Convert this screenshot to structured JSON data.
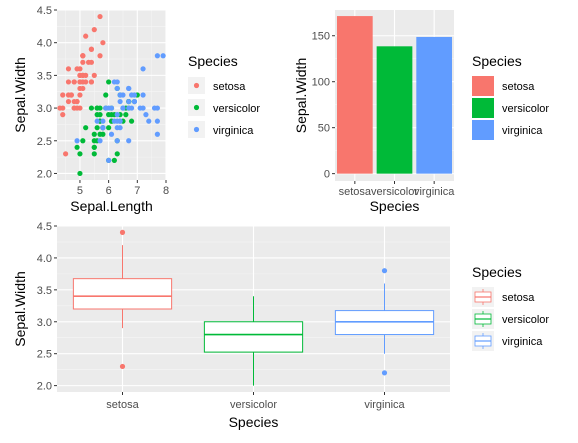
{
  "colors": {
    "setosa": "#F8766D",
    "versicolor": "#00BA38",
    "virginica": "#619CFF",
    "panel": "#EBEBEB",
    "grid_major": "#FFFFFF",
    "grid_minor": "#F5F5F5",
    "legend_key_bg": "#F2F2F2"
  },
  "chart_data": [
    {
      "type": "scatter",
      "xlabel": "Sepal.Length",
      "ylabel": "Sepal.Width",
      "xlim": [
        4.2,
        8.0
      ],
      "ylim": [
        1.9,
        4.5
      ],
      "xticks": [
        5,
        6,
        7,
        8
      ],
      "yticks": [
        2.0,
        2.5,
        3.0,
        3.5,
        4.0,
        4.5
      ],
      "xtick_labels": [
        "5",
        "6",
        "7",
        "8"
      ],
      "ytick_labels": [
        "2.0",
        "2.5",
        "3.0",
        "3.5",
        "4.0",
        "4.5"
      ],
      "grid": true,
      "legend": {
        "title": "Species",
        "position": "right",
        "entries": [
          "setosa",
          "versicolor",
          "virginica"
        ]
      },
      "series": [
        {
          "name": "setosa",
          "points": [
            [
              5.1,
              3.5
            ],
            [
              4.9,
              3.0
            ],
            [
              4.7,
              3.2
            ],
            [
              4.6,
              3.1
            ],
            [
              5.0,
              3.6
            ],
            [
              5.4,
              3.9
            ],
            [
              4.6,
              3.4
            ],
            [
              5.0,
              3.4
            ],
            [
              4.4,
              2.9
            ],
            [
              4.9,
              3.1
            ],
            [
              5.4,
              3.7
            ],
            [
              4.8,
              3.4
            ],
            [
              4.8,
              3.0
            ],
            [
              4.3,
              3.0
            ],
            [
              5.8,
              4.0
            ],
            [
              5.7,
              4.4
            ],
            [
              5.4,
              3.9
            ],
            [
              5.1,
              3.5
            ],
            [
              5.7,
              3.8
            ],
            [
              5.1,
              3.8
            ],
            [
              5.4,
              3.4
            ],
            [
              5.1,
              3.7
            ],
            [
              4.6,
              3.6
            ],
            [
              5.1,
              3.3
            ],
            [
              4.8,
              3.4
            ],
            [
              5.0,
              3.0
            ],
            [
              5.0,
              3.4
            ],
            [
              5.2,
              3.5
            ],
            [
              5.2,
              3.4
            ],
            [
              4.7,
              3.2
            ],
            [
              4.8,
              3.1
            ],
            [
              5.4,
              3.4
            ],
            [
              5.2,
              4.1
            ],
            [
              5.5,
              4.2
            ],
            [
              4.9,
              3.1
            ],
            [
              5.0,
              3.2
            ],
            [
              5.5,
              3.5
            ],
            [
              4.9,
              3.6
            ],
            [
              4.4,
              3.0
            ],
            [
              5.1,
              3.4
            ],
            [
              5.0,
              3.5
            ],
            [
              4.5,
              2.3
            ],
            [
              4.4,
              3.2
            ],
            [
              5.0,
              3.5
            ],
            [
              5.1,
              3.8
            ],
            [
              4.8,
              3.0
            ],
            [
              5.1,
              3.8
            ],
            [
              4.6,
              3.2
            ],
            [
              5.3,
              3.7
            ],
            [
              5.0,
              3.3
            ]
          ]
        },
        {
          "name": "versicolor",
          "points": [
            [
              7.0,
              3.2
            ],
            [
              6.4,
              3.2
            ],
            [
              6.9,
              3.1
            ],
            [
              5.5,
              2.3
            ],
            [
              6.5,
              2.8
            ],
            [
              5.7,
              2.8
            ],
            [
              6.3,
              3.3
            ],
            [
              4.9,
              2.4
            ],
            [
              6.6,
              2.9
            ],
            [
              5.2,
              2.7
            ],
            [
              5.0,
              2.0
            ],
            [
              5.9,
              3.0
            ],
            [
              6.0,
              2.2
            ],
            [
              6.1,
              2.9
            ],
            [
              5.6,
              2.9
            ],
            [
              6.7,
              3.1
            ],
            [
              5.6,
              3.0
            ],
            [
              5.8,
              2.7
            ],
            [
              6.2,
              2.2
            ],
            [
              5.6,
              2.5
            ],
            [
              5.9,
              3.2
            ],
            [
              6.1,
              2.8
            ],
            [
              6.3,
              2.5
            ],
            [
              6.1,
              2.8
            ],
            [
              6.4,
              2.9
            ],
            [
              6.6,
              3.0
            ],
            [
              6.8,
              2.8
            ],
            [
              6.7,
              3.0
            ],
            [
              6.0,
              2.9
            ],
            [
              5.7,
              2.6
            ],
            [
              5.5,
              2.4
            ],
            [
              5.5,
              2.4
            ],
            [
              5.8,
              2.7
            ],
            [
              6.0,
              2.7
            ],
            [
              5.4,
              3.0
            ],
            [
              6.0,
              3.4
            ],
            [
              6.7,
              3.1
            ],
            [
              6.3,
              2.3
            ],
            [
              5.6,
              3.0
            ],
            [
              5.5,
              2.5
            ],
            [
              5.5,
              2.6
            ],
            [
              6.1,
              3.0
            ],
            [
              5.8,
              2.6
            ],
            [
              5.0,
              2.3
            ],
            [
              5.6,
              2.7
            ],
            [
              5.7,
              3.0
            ],
            [
              5.7,
              2.9
            ],
            [
              6.2,
              2.9
            ],
            [
              5.1,
              2.5
            ],
            [
              5.7,
              2.8
            ]
          ]
        },
        {
          "name": "virginica",
          "points": [
            [
              6.3,
              3.3
            ],
            [
              5.8,
              2.7
            ],
            [
              7.1,
              3.0
            ],
            [
              6.3,
              2.9
            ],
            [
              6.5,
              3.0
            ],
            [
              7.6,
              3.0
            ],
            [
              4.9,
              2.5
            ],
            [
              7.3,
              2.9
            ],
            [
              6.7,
              2.5
            ],
            [
              7.2,
              3.6
            ],
            [
              6.5,
              3.2
            ],
            [
              6.4,
              2.7
            ],
            [
              6.8,
              3.0
            ],
            [
              5.7,
              2.5
            ],
            [
              5.8,
              2.8
            ],
            [
              6.4,
              3.2
            ],
            [
              6.5,
              3.0
            ],
            [
              7.7,
              3.8
            ],
            [
              7.7,
              2.6
            ],
            [
              6.0,
              2.2
            ],
            [
              6.9,
              3.2
            ],
            [
              5.6,
              2.8
            ],
            [
              7.7,
              2.8
            ],
            [
              6.3,
              2.7
            ],
            [
              6.7,
              3.3
            ],
            [
              7.2,
              3.2
            ],
            [
              6.2,
              2.8
            ],
            [
              6.1,
              3.0
            ],
            [
              6.4,
              2.8
            ],
            [
              7.2,
              3.0
            ],
            [
              7.4,
              2.8
            ],
            [
              7.9,
              3.8
            ],
            [
              6.4,
              2.8
            ],
            [
              6.3,
              2.8
            ],
            [
              6.1,
              2.6
            ],
            [
              7.7,
              3.0
            ],
            [
              6.3,
              3.4
            ],
            [
              6.4,
              3.1
            ],
            [
              6.0,
              3.0
            ],
            [
              6.9,
              3.1
            ],
            [
              6.7,
              3.1
            ],
            [
              6.9,
              3.1
            ],
            [
              5.8,
              2.7
            ],
            [
              6.8,
              3.2
            ],
            [
              6.7,
              3.3
            ],
            [
              6.7,
              3.0
            ],
            [
              6.3,
              2.5
            ],
            [
              6.5,
              3.0
            ],
            [
              6.2,
              3.4
            ],
            [
              5.9,
              3.0
            ]
          ]
        }
      ]
    },
    {
      "type": "bar",
      "xlabel": "Species",
      "ylabel": "Sepal.Width",
      "categories": [
        "setosa",
        "versicolor",
        "virginica"
      ],
      "values": [
        171.4,
        138.5,
        148.7
      ],
      "ylim": [
        -8,
        178
      ],
      "yticks": [
        0,
        50,
        100,
        150
      ],
      "ytick_labels": [
        "0",
        "50",
        "100",
        "150"
      ],
      "grid": true,
      "legend": {
        "title": "Species",
        "position": "right",
        "entries": [
          "setosa",
          "versicolor",
          "virginica"
        ]
      }
    },
    {
      "type": "box",
      "xlabel": "Species",
      "ylabel": "Sepal.Width",
      "categories": [
        "setosa",
        "versicolor",
        "virginica"
      ],
      "ylim": [
        1.9,
        4.5
      ],
      "yticks": [
        2.0,
        2.5,
        3.0,
        3.5,
        4.0,
        4.5
      ],
      "ytick_labels": [
        "2.0",
        "2.5",
        "3.0",
        "3.5",
        "4.0",
        "4.5"
      ],
      "grid": true,
      "boxes": [
        {
          "name": "setosa",
          "whisker_low": 2.9,
          "q1": 3.2,
          "median": 3.4,
          "q3": 3.675,
          "whisker_high": 4.2,
          "outliers": [
            4.4,
            2.3
          ]
        },
        {
          "name": "versicolor",
          "whisker_low": 2.0,
          "q1": 2.525,
          "median": 2.8,
          "q3": 3.0,
          "whisker_high": 3.4,
          "outliers": []
        },
        {
          "name": "virginica",
          "whisker_low": 2.5,
          "q1": 2.8,
          "median": 3.0,
          "q3": 3.175,
          "whisker_high": 3.6,
          "outliers": [
            3.8,
            2.2
          ]
        }
      ],
      "legend": {
        "title": "Species",
        "position": "right",
        "entries": [
          "setosa",
          "versicolor",
          "virginica"
        ]
      }
    }
  ]
}
